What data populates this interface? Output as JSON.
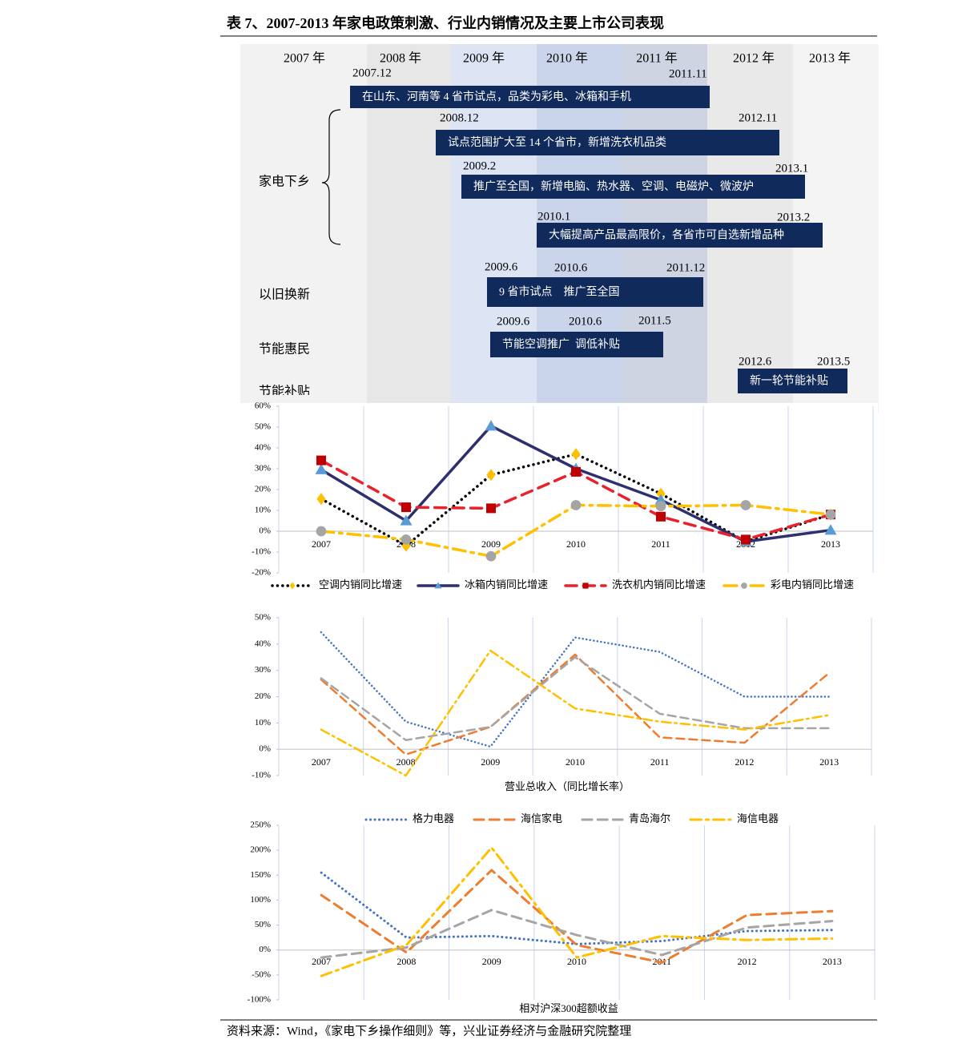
{
  "title": "表 7、2007-2013 年家电政策刺激、行业内销情况及主要上市公司表现",
  "timeline": {
    "years": [
      "2007 年",
      "2008 年",
      "2009 年",
      "2010 年",
      "2011 年",
      "2012 年",
      "2013 年"
    ],
    "rows": [
      "家电下乡",
      "以旧换新",
      "节能惠民",
      "节能补贴"
    ],
    "bars": [
      {
        "text": "在山东、河南等 4 省市试点，品类为彩电、冰箱和手机",
        "dates": [
          "2007.12",
          "2011.11"
        ]
      },
      {
        "text": "试点范围扩大至 14 个省市，新增洗衣机品类",
        "dates": [
          "2008.12",
          "2012.11"
        ]
      },
      {
        "text": "推广至全国，新增电脑、热水器、空调、电磁炉、微波炉",
        "dates": [
          "2009.2",
          "2013.1"
        ]
      },
      {
        "text": "大幅提高产品最高限价，各省市可自选新增品种",
        "dates": [
          "2010.1",
          "2013.2"
        ]
      },
      {
        "text": "9 省市试点    推广至全国",
        "dates": [
          "2009.6",
          "2010.6",
          "2011.12"
        ]
      },
      {
        "text": "节能空调推广  调低补贴",
        "dates": [
          "2009.6",
          "2010.6",
          "2011.5"
        ]
      },
      {
        "text": "新一轮节能补贴",
        "dates": [
          "2012.6",
          "2013.5"
        ]
      }
    ]
  },
  "chart_data": [
    {
      "type": "line",
      "categories": [
        "2007",
        "2008",
        "2009",
        "2010",
        "2011",
        "2012",
        "2013"
      ],
      "ylim": [
        -20,
        60
      ],
      "yticks": [
        {
          "value": -20,
          "label": "-20%"
        },
        {
          "value": -10,
          "label": "-10%"
        },
        {
          "value": 0,
          "label": "0%"
        },
        {
          "value": 10,
          "label": "10%"
        },
        {
          "value": 20,
          "label": "20%"
        },
        {
          "value": 30,
          "label": "30%"
        },
        {
          "value": 40,
          "label": "40%"
        },
        {
          "value": 50,
          "label": "50%"
        },
        {
          "value": 60,
          "label": "60%"
        }
      ],
      "grid": "vertical",
      "legend": "bottom",
      "series": [
        {
          "name": "空调内销同比增速",
          "color": "#000000",
          "line_style": "dotted",
          "marker": "diamond",
          "marker_color": "#ffc000",
          "values": [
            15.5,
            -7,
            27,
            37,
            18,
            -5,
            8
          ]
        },
        {
          "name": "冰箱内销同比增速",
          "color": "#2e2f6e",
          "line_style": "solid",
          "marker": "triangle",
          "marker_color": "#5b9bd5",
          "values": [
            29.5,
            5,
            50.5,
            30,
            15,
            -5,
            0.5
          ]
        },
        {
          "name": "洗衣机内销同比增速",
          "color": "#e8212a",
          "line_style": "dashed",
          "marker": "square",
          "marker_color": "#c00000",
          "values": [
            34,
            11.5,
            11,
            28.5,
            7,
            -4,
            8
          ]
        },
        {
          "name": "彩电内销同比增速",
          "color": "#ffc000",
          "line_style": "dash-dot",
          "marker": "circle",
          "marker_color": "#a5a5a5",
          "values": [
            0,
            -4,
            -12,
            12.5,
            12,
            12.5,
            8
          ]
        }
      ]
    },
    {
      "type": "line",
      "title": "营业总收入（同比增长率）",
      "categories": [
        "2007",
        "2008",
        "2009",
        "2010",
        "2011",
        "2012",
        "2013"
      ],
      "ylim": [
        -10,
        50
      ],
      "yticks": [
        {
          "value": -10,
          "label": "-10%"
        },
        {
          "value": 0,
          "label": "0%"
        },
        {
          "value": 10,
          "label": "10%"
        },
        {
          "value": 20,
          "label": "20%"
        },
        {
          "value": 30,
          "label": "30%"
        },
        {
          "value": 40,
          "label": "40%"
        },
        {
          "value": 50,
          "label": "50%"
        }
      ],
      "grid": "vertical",
      "series": [
        {
          "color": "#4472c4",
          "line_style": "dotted",
          "values": [
            44.5,
            10.5,
            1,
            42.5,
            37,
            20,
            20
          ]
        },
        {
          "color": "#ed7d31",
          "line_style": "dashed",
          "values": [
            26.5,
            -2,
            8.5,
            36,
            4.5,
            2.5,
            29
          ]
        },
        {
          "color": "#a5a5a5",
          "line_style": "dashed",
          "values": [
            27,
            3.5,
            8.5,
            35,
            13.5,
            8,
            8
          ]
        },
        {
          "color": "#ffc000",
          "line_style": "dash-dot",
          "values": [
            7.5,
            -10,
            37.5,
            15.5,
            10.5,
            7.5,
            13
          ]
        }
      ]
    },
    {
      "type": "line",
      "title": "相对沪深300超额收益",
      "categories": [
        "2007",
        "2008",
        "2009",
        "2010",
        "2011",
        "2012",
        "2013"
      ],
      "ylim": [
        -100,
        250
      ],
      "yticks": [
        {
          "value": -100,
          "label": "-100%"
        },
        {
          "value": -50,
          "label": "-50%"
        },
        {
          "value": 0,
          "label": "0%"
        },
        {
          "value": 50,
          "label": "50%"
        },
        {
          "value": 100,
          "label": "100%"
        },
        {
          "value": 150,
          "label": "150%"
        },
        {
          "value": 200,
          "label": "200%"
        },
        {
          "value": 250,
          "label": "250%"
        }
      ],
      "grid": "vertical",
      "legend": "top",
      "series": [
        {
          "name": "格力电器",
          "color": "#4472c4",
          "line_style": "dotted",
          "values": [
            155,
            25,
            28,
            12,
            18,
            38,
            40
          ]
        },
        {
          "name": "海信家电",
          "color": "#ed7d31",
          "line_style": "dashed",
          "values": [
            110,
            -5,
            160,
            10,
            -25,
            70,
            78
          ]
        },
        {
          "name": "青岛海尔",
          "color": "#a5a5a5",
          "line_style": "dashed",
          "values": [
            -15,
            5,
            80,
            30,
            -10,
            45,
            58
          ]
        },
        {
          "name": "海信电器",
          "color": "#ffc000",
          "line_style": "dash-dot",
          "values": [
            -52,
            10,
            205,
            -15,
            28,
            20,
            23
          ]
        }
      ]
    }
  ],
  "source": "资料来源：Wind，《家电下乡操作细则》等，兴业证券经济与金融研究院整理"
}
